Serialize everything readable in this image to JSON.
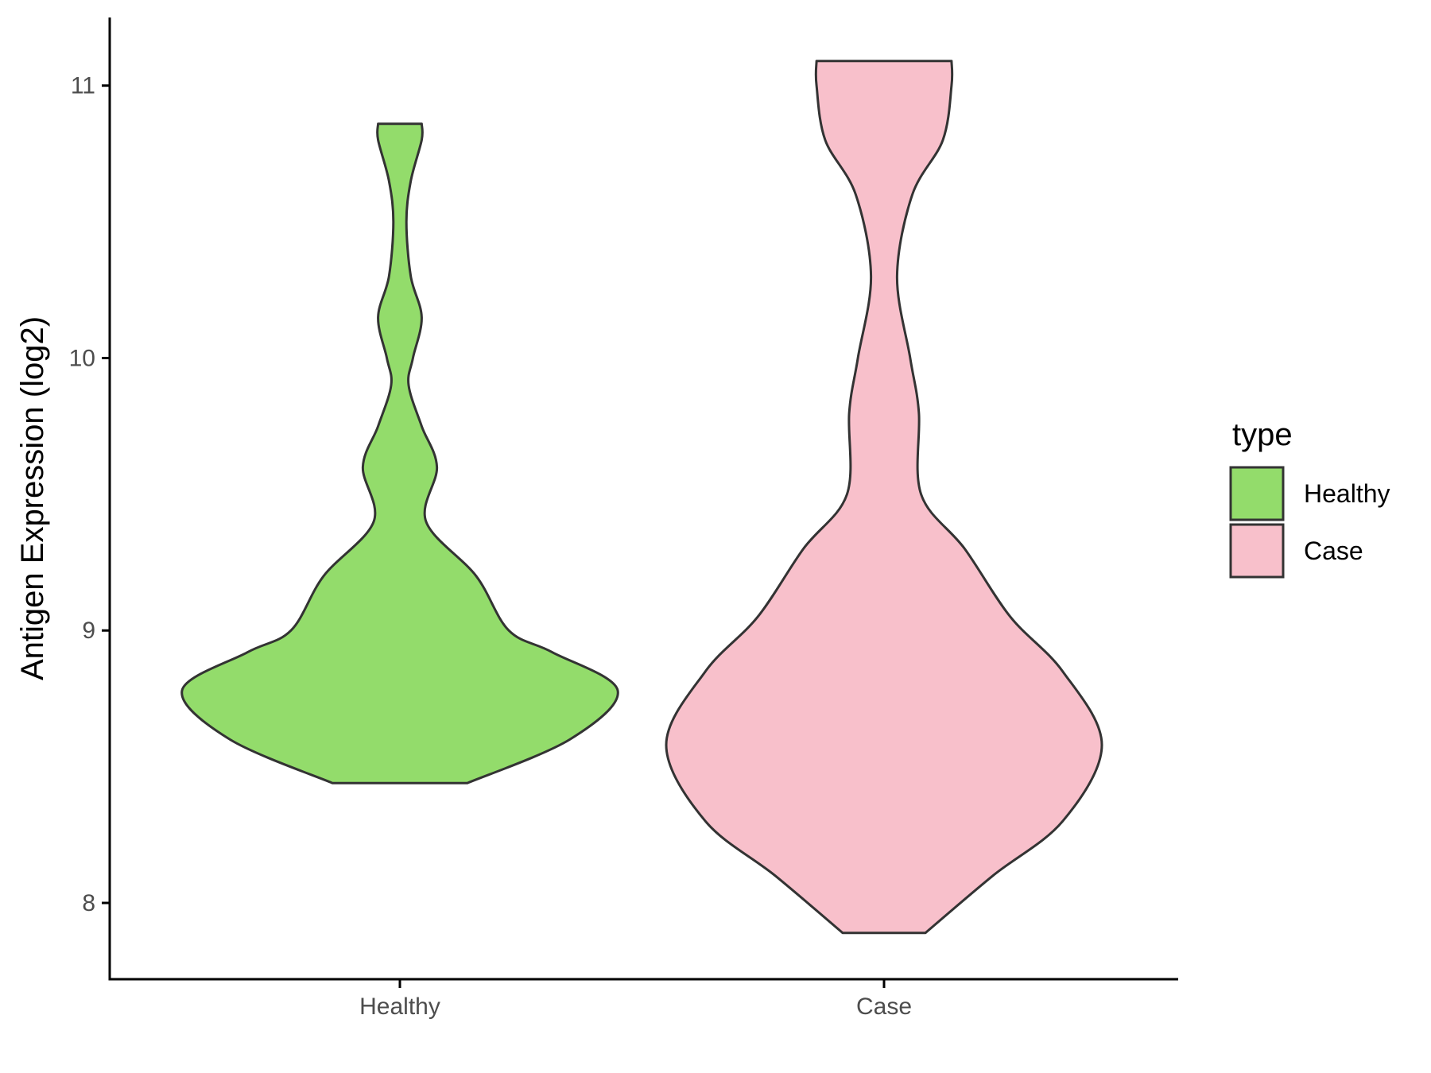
{
  "chart_data": {
    "type": "violin",
    "xlabel": "",
    "ylabel": "Antigen Expression (log2)",
    "ylim": [
      7.72,
      11.25
    ],
    "yticks": [
      "8",
      "9",
      "10",
      "11"
    ],
    "categories": [
      "Healthy",
      "Case"
    ],
    "grid": false,
    "legend": {
      "title": "type",
      "position": "right",
      "entries": [
        {
          "label": "Healthy",
          "color": "#93dc6b"
        },
        {
          "label": "Case",
          "color": "#f8c0cb"
        }
      ]
    },
    "series": [
      {
        "category": "Healthy",
        "color": "#93dc6b",
        "min": 8.44,
        "max": 10.86,
        "profile": [
          [
            8.44,
            0.31
          ],
          [
            8.6,
            0.78
          ],
          [
            8.78,
            1.0
          ],
          [
            8.92,
            0.7
          ],
          [
            9.0,
            0.5
          ],
          [
            9.2,
            0.35
          ],
          [
            9.4,
            0.12
          ],
          [
            9.6,
            0.17
          ],
          [
            9.75,
            0.1
          ],
          [
            9.9,
            0.04
          ],
          [
            10.0,
            0.06
          ],
          [
            10.15,
            0.1
          ],
          [
            10.3,
            0.05
          ],
          [
            10.5,
            0.03
          ],
          [
            10.65,
            0.05
          ],
          [
            10.8,
            0.1
          ],
          [
            10.86,
            0.1
          ]
        ]
      },
      {
        "category": "Case",
        "color": "#f8c0cb",
        "min": 7.89,
        "max": 11.09,
        "profile": [
          [
            7.89,
            0.19
          ],
          [
            8.1,
            0.5
          ],
          [
            8.3,
            0.82
          ],
          [
            8.58,
            1.0
          ],
          [
            8.85,
            0.82
          ],
          [
            9.05,
            0.58
          ],
          [
            9.3,
            0.37
          ],
          [
            9.5,
            0.17
          ],
          [
            9.8,
            0.16
          ],
          [
            10.0,
            0.12
          ],
          [
            10.3,
            0.06
          ],
          [
            10.6,
            0.13
          ],
          [
            10.8,
            0.27
          ],
          [
            11.0,
            0.31
          ],
          [
            11.09,
            0.31
          ]
        ]
      }
    ]
  }
}
